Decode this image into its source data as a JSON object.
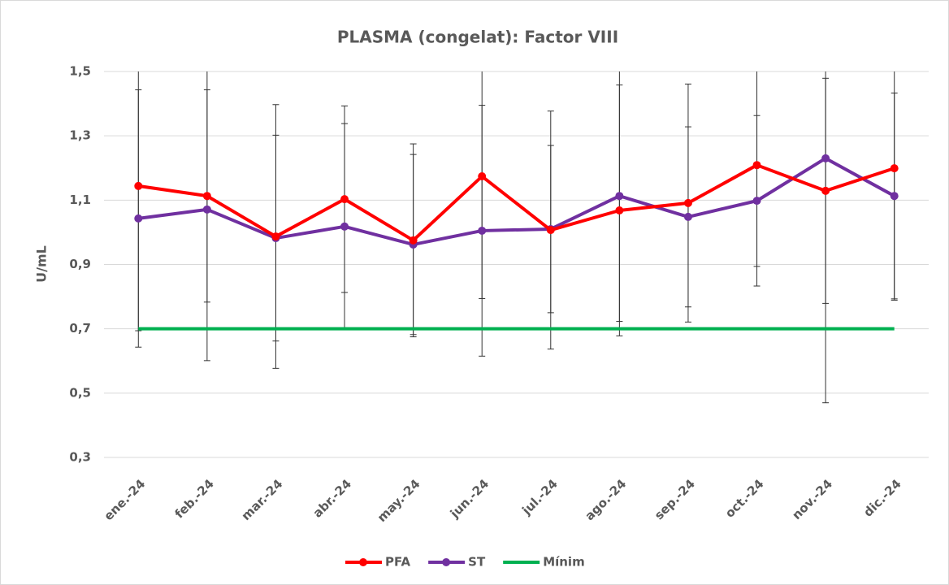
{
  "chart_data": {
    "type": "line",
    "title": "PLASMA (congelat): Factor VIII",
    "y_label": "U/mL",
    "categories": [
      "ene.-24",
      "feb.-24",
      "mar.-24",
      "abr.-24",
      "may.-24",
      "jun.-24",
      "jul.-24",
      "ago.-24",
      "sep.-24",
      "oct.-24",
      "nov.-24",
      "dic.-24"
    ],
    "series": [
      {
        "name": "PFA",
        "color": "#ff0000",
        "markers": true,
        "values": [
          1.144,
          1.113,
          0.987,
          1.103,
          0.975,
          1.174,
          1.007,
          1.068,
          1.091,
          1.209,
          1.129,
          1.199
        ],
        "errors": [
          0.45,
          0.33,
          0.41,
          0.29,
          0.3,
          0.38,
          0.37,
          0.39,
          0.37,
          0.315,
          0.35,
          0.41
        ]
      },
      {
        "name": "ST",
        "color": "#7030a0",
        "markers": true,
        "values": [
          1.043,
          1.071,
          0.982,
          1.018,
          0.962,
          1.005,
          1.01,
          1.113,
          1.048,
          1.098,
          1.23,
          1.113
        ],
        "errors": [
          0.4,
          0.47,
          0.32,
          0.32,
          0.28,
          0.39,
          0.26,
          0.39,
          0.28,
          0.265,
          0.76,
          0.32
        ]
      },
      {
        "name": "Mínim",
        "color": "#00b050",
        "markers": false,
        "values": [
          0.7,
          0.7,
          0.7,
          0.7,
          0.7,
          0.7,
          0.7,
          0.7,
          0.7,
          0.7,
          0.7,
          0.7
        ]
      }
    ],
    "ylim": [
      0.3,
      1.5
    ],
    "yticks": [
      {
        "value": 0.3,
        "label": "0,3"
      },
      {
        "value": 0.5,
        "label": "0,5"
      },
      {
        "value": 0.7,
        "label": "0,7"
      },
      {
        "value": 0.9,
        "label": "0,9"
      },
      {
        "value": 1.1,
        "label": "1,1"
      },
      {
        "value": 1.3,
        "label": "1,3"
      },
      {
        "value": 1.5,
        "label": "1,5"
      }
    ],
    "grid": true,
    "legend": "bottom"
  }
}
